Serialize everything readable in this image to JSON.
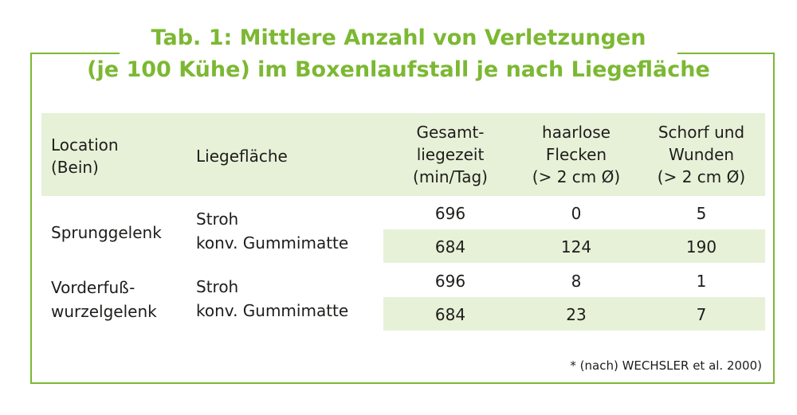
{
  "title": {
    "line1": "Tab. 1: Mittlere Anzahl von Verletzungen",
    "line2": "(je 100 Kühe) im Boxenlaufstall je nach Liegefläche"
  },
  "header": {
    "location_l1": "Location",
    "location_l2": "(Bein)",
    "liegeflaeche": "Liegefläche",
    "gesamt_l1": "Gesamt-",
    "gesamt_l2": "liegezeit",
    "gesamt_l3": "(min/Tag)",
    "haarlose_l1": "haarlose",
    "haarlose_l2": "Flecken",
    "haarlose_l3": "(> 2 cm  Ø)",
    "schorf_l1": "Schorf und",
    "schorf_l2": "Wunden",
    "schorf_l3": "(> 2 cm  Ø)"
  },
  "rows": [
    {
      "location": "Sprunggelenk",
      "liegeflaeche": "Stroh",
      "liegezeit": "696",
      "flecken": "0",
      "wunden": "5"
    },
    {
      "liegeflaeche": "konv. Gummimatte",
      "liegezeit": "684",
      "flecken": "124",
      "wunden": "190"
    },
    {
      "location_l1": "Vorderfuß-",
      "location_l2": "wurzelgelenk",
      "liegeflaeche": "Stroh",
      "liegezeit": "696",
      "flecken": "8",
      "wunden": "1"
    },
    {
      "liegeflaeche": "konv. Gummimatte",
      "liegezeit": "684",
      "flecken": "23",
      "wunden": "7"
    }
  ],
  "footnote": "* (nach) WECHSLER et al. 2000)",
  "colors": {
    "accent": "#7cb833",
    "band": "#e7f1d8",
    "text": "#1d1d1b"
  }
}
